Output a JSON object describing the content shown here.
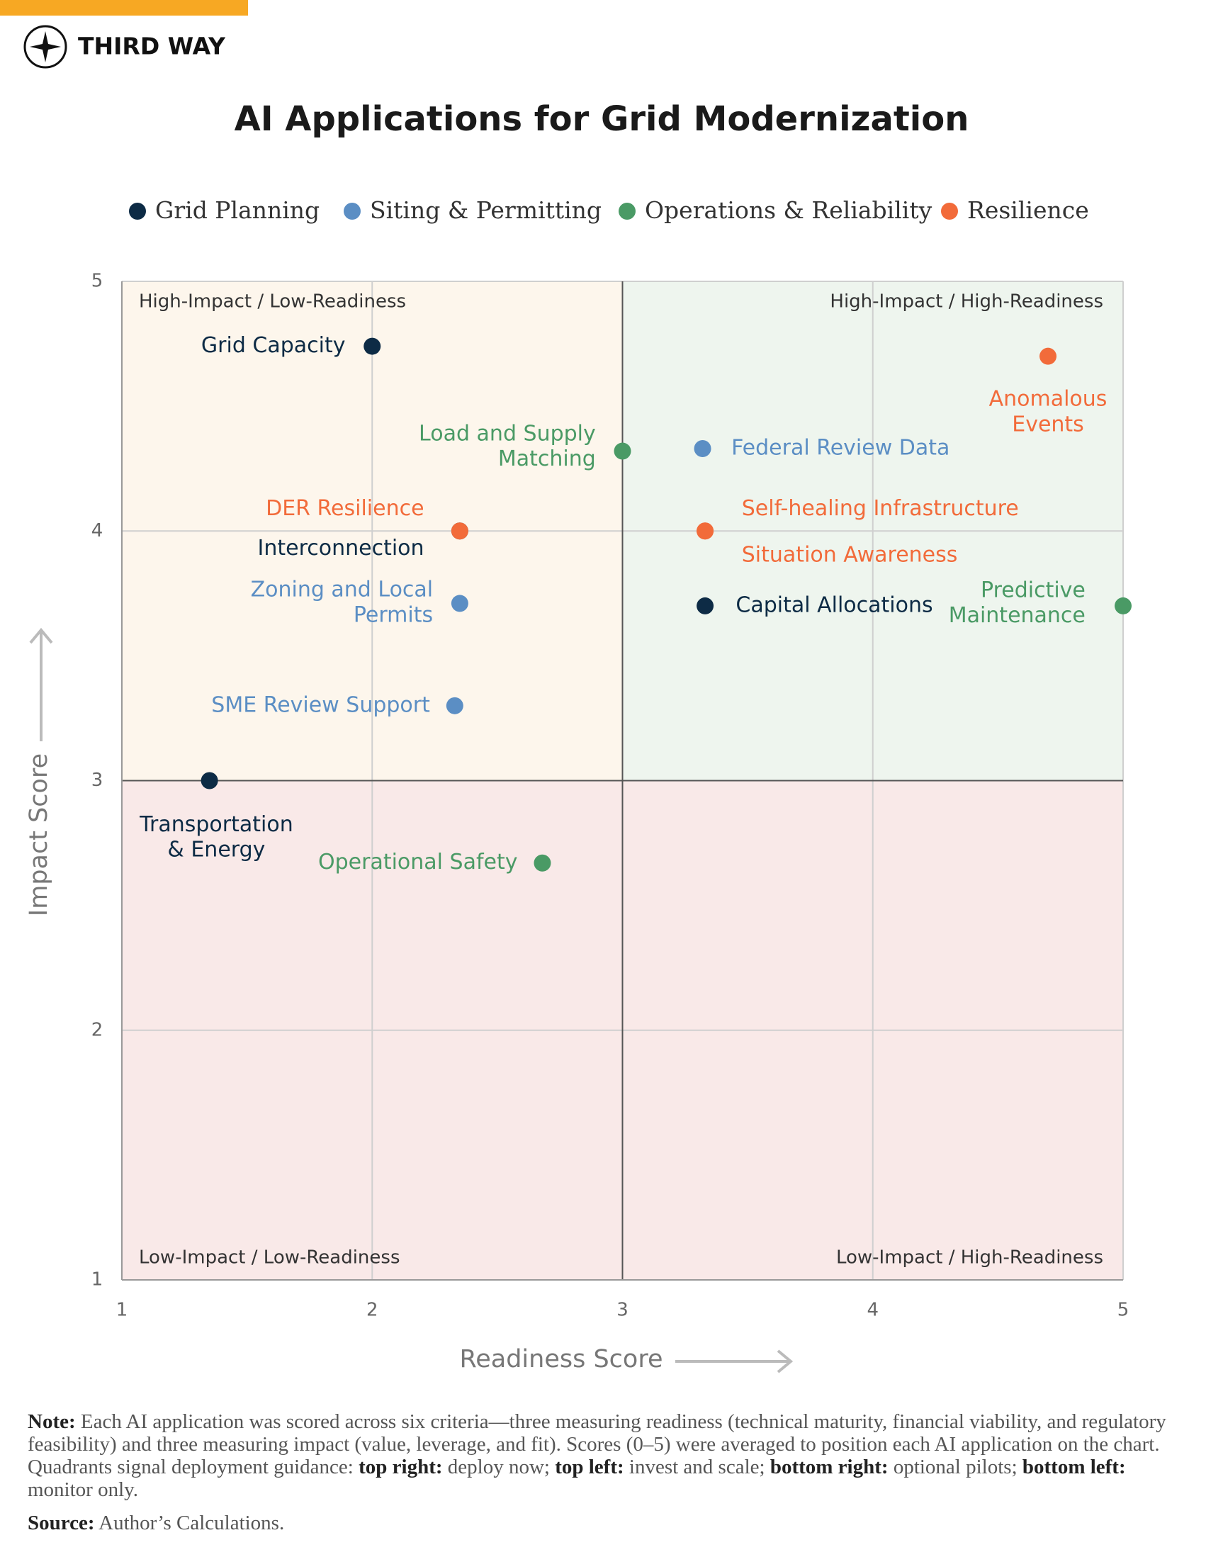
{
  "brand": "THIRD WAY",
  "chart_data": {
    "type": "scatter",
    "title": "AI Applications for Grid Modernization",
    "x_label": "Readiness Score",
    "y_label": "Impact Score",
    "xlim": [
      1,
      5
    ],
    "ylim": [
      1,
      5
    ],
    "xticks": [
      1,
      2,
      3,
      4,
      5
    ],
    "yticks": [
      1,
      2,
      3,
      4,
      5
    ],
    "grid": true,
    "quadrant_divider": {
      "x": 3,
      "y": 3
    },
    "quadrant_labels": {
      "top_left": "High-Impact / Low-Readiness",
      "top_right": "High-Impact / High-Readiness",
      "bottom_left": "Low-Impact / Low-Readiness",
      "bottom_right": "Low-Impact / High-Readiness"
    },
    "series": [
      {
        "name": "Grid Planning",
        "color": "#0d2b45",
        "x": [
          2.0,
          2.35,
          3.33,
          1.35
        ],
        "values": [
          4.74,
          4.0,
          3.7,
          3.0
        ],
        "labels": [
          [
            "Grid Capacity"
          ],
          [
            "Interconnection"
          ],
          [
            "Capital Allocations"
          ],
          [
            "Transportation",
            "& Energy"
          ]
        ]
      },
      {
        "name": "Siting & Permitting",
        "color": "#5b8ec4",
        "x": [
          3.32,
          2.35,
          2.33
        ],
        "values": [
          4.33,
          3.71,
          3.3
        ],
        "labels": [
          [
            "Federal Review Data"
          ],
          [
            "Zoning and Local",
            "Permits"
          ],
          [
            "SME Review Support"
          ]
        ]
      },
      {
        "name": "Operations & Reliability",
        "color": "#4a9a65",
        "x": [
          3.0,
          5.0,
          2.68
        ],
        "values": [
          4.32,
          3.7,
          2.67
        ],
        "labels": [
          [
            "Load and Supply",
            "Matching"
          ],
          [
            "Predictive",
            "Maintenance"
          ],
          [
            "Operational Safety"
          ]
        ]
      },
      {
        "name": "Resilience",
        "color": "#f26b3a",
        "x": [
          4.7,
          2.35,
          3.33,
          3.33
        ],
        "values": [
          4.7,
          4.0,
          4.0,
          4.0
        ],
        "labels": [
          [
            "Anomalous",
            "Events"
          ],
          [
            "DER Resilience"
          ],
          [
            "Self-healing Infrastructure"
          ],
          [
            "Situation Awareness"
          ]
        ]
      }
    ]
  },
  "note": [
    {
      "text": "Note:",
      "bold": true
    },
    {
      "text": " Each AI application was scored across six criteria—three measuring readiness (technical maturity, financial viability, and regulatory feasibility) and three measuring impact (value, leverage, and fit). Scores (0–5) were averaged to position each AI application on the chart. Quadrants signal deployment guidance: ",
      "bold": false
    },
    {
      "text": "top right:",
      "bold": true
    },
    {
      "text": " deploy now; ",
      "bold": false
    },
    {
      "text": "top left:",
      "bold": true
    },
    {
      "text": " invest and scale; ",
      "bold": false
    },
    {
      "text": "bottom right:",
      "bold": true
    },
    {
      "text": " optional pilots; ",
      "bold": false
    },
    {
      "text": "bottom left:",
      "bold": true
    },
    {
      "text": " monitor only.",
      "bold": false
    }
  ],
  "source": [
    {
      "text": "Source:",
      "bold": true
    },
    {
      "text": " Author’s Calculations.",
      "bold": false
    }
  ]
}
